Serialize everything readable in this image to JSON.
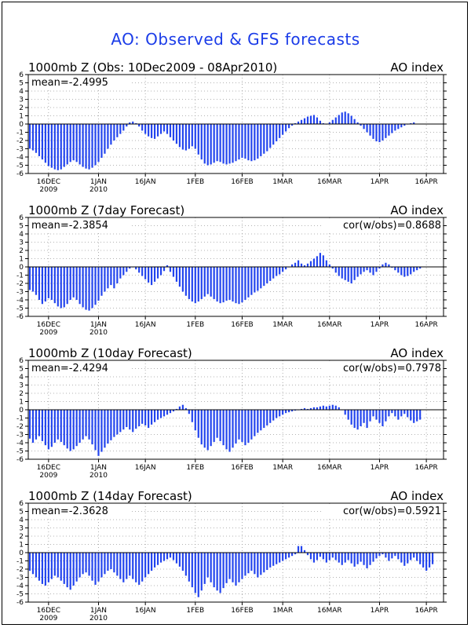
{
  "title": "AO: Observed & GFS forecasts",
  "chart_data": [
    {
      "type": "bar",
      "panel_title": "1000mb Z (Obs: 10Dec2009 - 08Apr2010)",
      "right_title": "AO index",
      "mean_label": "mean=-2.4995",
      "cor_label": "",
      "ylim": [
        -6,
        6
      ],
      "yticks": [
        6,
        5,
        4,
        3,
        2,
        1,
        0,
        -1,
        -2,
        -3,
        -4,
        -5,
        -6
      ],
      "xticks": [
        {
          "day": 6,
          "label": "16DEC",
          "sub": "2009"
        },
        {
          "day": 22,
          "label": "1JAN",
          "sub": "2010"
        },
        {
          "day": 37,
          "label": "16JAN",
          "sub": ""
        },
        {
          "day": 53,
          "label": "1FEB",
          "sub": ""
        },
        {
          "day": 68,
          "label": "16FEB",
          "sub": ""
        },
        {
          "day": 81,
          "label": "1MAR",
          "sub": ""
        },
        {
          "day": 96,
          "label": "16MAR",
          "sub": ""
        },
        {
          "day": 112,
          "label": "1APR",
          "sub": ""
        },
        {
          "day": 127,
          "label": "16APR",
          "sub": ""
        }
      ],
      "grid": true,
      "color": "#2244ee",
      "values": [
        -3.0,
        -3.2,
        -3.5,
        -3.9,
        -4.3,
        -4.7,
        -5.1,
        -5.3,
        -5.5,
        -5.6,
        -5.5,
        -5.2,
        -4.9,
        -4.6,
        -4.4,
        -4.6,
        -4.9,
        -5.2,
        -5.4,
        -5.5,
        -5.3,
        -5.0,
        -4.6,
        -4.1,
        -3.6,
        -3.0,
        -2.5,
        -2.0,
        -1.6,
        -1.2,
        -0.8,
        -0.3,
        0.2,
        0.3,
        0.1,
        -0.3,
        -0.8,
        -1.2,
        -1.5,
        -1.7,
        -1.8,
        -1.5,
        -1.2,
        -0.9,
        -1.2,
        -1.6,
        -2.0,
        -2.4,
        -2.8,
        -3.1,
        -3.2,
        -3.0,
        -2.7,
        -3.0,
        -3.7,
        -4.3,
        -4.8,
        -5.0,
        -4.9,
        -4.7,
        -4.5,
        -4.6,
        -4.8,
        -4.9,
        -4.8,
        -4.7,
        -4.5,
        -4.3,
        -4.1,
        -4.2,
        -4.4,
        -4.5,
        -4.4,
        -4.2,
        -3.9,
        -3.6,
        -3.3,
        -2.9,
        -2.5,
        -2.1,
        -1.7,
        -1.3,
        -0.9,
        -0.5,
        -0.2,
        0.1,
        0.3,
        0.5,
        0.7,
        0.9,
        1.0,
        1.1,
        0.8,
        0.4,
        0.1,
        0.0,
        0.2,
        0.5,
        0.8,
        1.1,
        1.4,
        1.5,
        1.3,
        1.0,
        0.6,
        0.2,
        -0.2,
        -0.6,
        -1.0,
        -1.4,
        -1.8,
        -2.1,
        -2.2,
        -2.0,
        -1.7,
        -1.4,
        -1.1,
        -0.8,
        -0.6,
        -0.4,
        -0.2,
        0.0,
        0.1,
        0.2
      ]
    },
    {
      "type": "bar",
      "panel_title": "1000mb Z (7day Forecast)",
      "right_title": "AO index",
      "mean_label": "mean=-2.3854",
      "cor_label": "cor(w/obs)=0.8688",
      "ylim": [
        -6,
        6
      ],
      "yticks": [
        6,
        5,
        4,
        3,
        2,
        1,
        0,
        -1,
        -2,
        -3,
        -4,
        -5,
        -6
      ],
      "xticks": [
        {
          "day": 6,
          "label": "16DEC",
          "sub": "2009"
        },
        {
          "day": 22,
          "label": "1JAN",
          "sub": "2010"
        },
        {
          "day": 37,
          "label": "16JAN",
          "sub": ""
        },
        {
          "day": 53,
          "label": "1FEB",
          "sub": ""
        },
        {
          "day": 68,
          "label": "16FEB",
          "sub": ""
        },
        {
          "day": 81,
          "label": "1MAR",
          "sub": ""
        },
        {
          "day": 96,
          "label": "16MAR",
          "sub": ""
        },
        {
          "day": 112,
          "label": "1APR",
          "sub": ""
        },
        {
          "day": 127,
          "label": "16APR",
          "sub": ""
        }
      ],
      "grid": true,
      "color": "#2244ee",
      "values": [
        -2.8,
        -3.0,
        -3.4,
        -4.0,
        -4.5,
        -4.2,
        -3.8,
        -4.0,
        -4.4,
        -4.8,
        -5.0,
        -4.9,
        -4.5,
        -4.0,
        -3.7,
        -4.0,
        -4.5,
        -4.9,
        -5.2,
        -5.3,
        -5.0,
        -4.6,
        -4.1,
        -3.5,
        -3.0,
        -2.6,
        -2.2,
        -2.6,
        -2.0,
        -1.4,
        -1.0,
        -0.6,
        -0.2,
        0.0,
        -0.3,
        -0.7,
        -1.1,
        -1.5,
        -1.9,
        -2.2,
        -1.8,
        -1.4,
        -1.0,
        -0.5,
        0.2,
        -0.6,
        -1.2,
        -1.8,
        -2.4,
        -3.0,
        -3.5,
        -3.9,
        -4.2,
        -4.4,
        -4.2,
        -3.9,
        -3.6,
        -3.3,
        -3.6,
        -3.9,
        -4.2,
        -4.4,
        -4.3,
        -4.1,
        -4.0,
        -4.2,
        -4.4,
        -4.5,
        -4.3,
        -4.0,
        -3.7,
        -3.4,
        -3.1,
        -2.9,
        -2.6,
        -2.3,
        -2.0,
        -1.7,
        -1.4,
        -1.1,
        -0.9,
        -0.6,
        -0.3,
        0.0,
        0.3,
        0.5,
        0.8,
        0.4,
        0.2,
        0.4,
        0.7,
        1.0,
        1.3,
        1.7,
        1.4,
        0.8,
        0.3,
        -0.2,
        -0.7,
        -1.1,
        -1.4,
        -1.6,
        -1.8,
        -2.0,
        -1.6,
        -1.2,
        -0.9,
        -0.6,
        -0.4,
        -0.7,
        -1.0,
        -0.6,
        -0.2,
        0.3,
        0.5,
        0.3,
        -0.1,
        -0.4,
        -0.7,
        -1.0,
        -1.2,
        -1.1,
        -0.9,
        -0.6,
        -0.4,
        -0.2
      ]
    },
    {
      "type": "bar",
      "panel_title": "1000mb Z (10day Forecast)",
      "right_title": "AO index",
      "mean_label": "mean=-2.4294",
      "cor_label": "cor(w/obs)=0.7978",
      "ylim": [
        -6,
        6
      ],
      "yticks": [
        6,
        5,
        4,
        3,
        2,
        1,
        0,
        -1,
        -2,
        -3,
        -4,
        -5,
        -6
      ],
      "xticks": [
        {
          "day": 6,
          "label": "16DEC",
          "sub": "2009"
        },
        {
          "day": 22,
          "label": "1JAN",
          "sub": "2010"
        },
        {
          "day": 37,
          "label": "16JAN",
          "sub": ""
        },
        {
          "day": 53,
          "label": "1FEB",
          "sub": ""
        },
        {
          "day": 68,
          "label": "16FEB",
          "sub": ""
        },
        {
          "day": 81,
          "label": "1MAR",
          "sub": ""
        },
        {
          "day": 96,
          "label": "16MAR",
          "sub": ""
        },
        {
          "day": 112,
          "label": "1APR",
          "sub": ""
        },
        {
          "day": 127,
          "label": "16APR",
          "sub": ""
        }
      ],
      "grid": true,
      "color": "#2244ee",
      "values": [
        -3.5,
        -4.0,
        -3.6,
        -3.2,
        -3.8,
        -4.3,
        -4.8,
        -4.5,
        -4.0,
        -3.6,
        -3.9,
        -4.3,
        -4.7,
        -5.0,
        -4.8,
        -4.4,
        -4.0,
        -3.6,
        -3.2,
        -3.6,
        -4.2,
        -4.9,
        -5.6,
        -5.1,
        -4.6,
        -4.1,
        -3.7,
        -3.3,
        -3.0,
        -2.7,
        -2.4,
        -2.1,
        -2.4,
        -2.7,
        -2.3,
        -2.0,
        -1.7,
        -1.9,
        -2.2,
        -1.8,
        -1.5,
        -1.2,
        -1.0,
        -0.8,
        -0.6,
        -0.4,
        -0.2,
        0.1,
        0.4,
        0.6,
        0.2,
        -0.5,
        -1.5,
        -2.5,
        -3.4,
        -4.2,
        -4.6,
        -4.9,
        -4.4,
        -3.9,
        -3.4,
        -3.8,
        -4.3,
        -4.8,
        -5.1,
        -4.6,
        -4.1,
        -3.6,
        -3.9,
        -4.3,
        -4.0,
        -3.6,
        -3.2,
        -2.8,
        -2.5,
        -2.2,
        -1.9,
        -1.6,
        -1.3,
        -1.0,
        -0.8,
        -0.6,
        -0.4,
        -0.3,
        -0.2,
        -0.1,
        0.0,
        0.1,
        0.2,
        0.1,
        0.2,
        0.3,
        0.3,
        0.4,
        0.5,
        0.4,
        0.5,
        0.6,
        0.5,
        0.3,
        0.0,
        -0.6,
        -1.2,
        -1.8,
        -2.2,
        -2.4,
        -2.0,
        -1.6,
        -2.2,
        -1.4,
        -0.8,
        -1.2,
        -1.6,
        -2.0,
        -1.4,
        -0.8,
        -0.4,
        -0.8,
        -1.2,
        -0.8,
        -0.5,
        -0.9,
        -1.3,
        -1.6,
        -1.4,
        -1.2
      ]
    },
    {
      "type": "bar",
      "panel_title": "1000mb Z (14day Forecast)",
      "right_title": "AO index",
      "mean_label": "mean=-2.3628",
      "cor_label": "cor(w/obs)=0.5921",
      "ylim": [
        -6,
        6
      ],
      "yticks": [
        6,
        5,
        4,
        3,
        2,
        1,
        0,
        -1,
        -2,
        -3,
        -4,
        -5,
        -6
      ],
      "xticks": [
        {
          "day": 6,
          "label": "16DEC",
          "sub": "2009"
        },
        {
          "day": 22,
          "label": "1JAN",
          "sub": "2010"
        },
        {
          "day": 37,
          "label": "16JAN",
          "sub": ""
        },
        {
          "day": 53,
          "label": "1FEB",
          "sub": ""
        },
        {
          "day": 68,
          "label": "16FEB",
          "sub": ""
        },
        {
          "day": 81,
          "label": "1MAR",
          "sub": ""
        },
        {
          "day": 96,
          "label": "16MAR",
          "sub": ""
        },
        {
          "day": 112,
          "label": "1APR",
          "sub": ""
        },
        {
          "day": 127,
          "label": "16APR",
          "sub": ""
        }
      ],
      "grid": true,
      "color": "#2244ee",
      "values": [
        -2.2,
        -2.6,
        -3.0,
        -3.4,
        -3.8,
        -4.0,
        -3.6,
        -3.2,
        -2.8,
        -3.0,
        -3.4,
        -3.8,
        -4.2,
        -4.5,
        -4.0,
        -3.5,
        -3.0,
        -2.6,
        -2.4,
        -2.8,
        -3.4,
        -3.9,
        -3.5,
        -3.0,
        -2.6,
        -2.2,
        -2.0,
        -2.4,
        -2.8,
        -3.2,
        -3.6,
        -3.2,
        -2.8,
        -3.2,
        -3.6,
        -3.9,
        -3.5,
        -3.0,
        -2.6,
        -2.2,
        -1.8,
        -1.5,
        -1.2,
        -1.0,
        -0.8,
        -0.6,
        -0.9,
        -1.3,
        -1.7,
        -2.2,
        -2.8,
        -3.5,
        -4.2,
        -4.9,
        -5.4,
        -4.6,
        -3.8,
        -3.0,
        -3.6,
        -4.2,
        -4.6,
        -4.9,
        -4.3,
        -3.7,
        -3.2,
        -3.6,
        -4.0,
        -3.6,
        -3.2,
        -2.8,
        -2.5,
        -2.2,
        -2.6,
        -3.0,
        -2.7,
        -2.4,
        -2.1,
        -1.8,
        -1.6,
        -1.4,
        -1.2,
        -1.0,
        -0.8,
        -0.6,
        -0.4,
        -0.2,
        0.8,
        0.8,
        0.3,
        -0.3,
        -0.8,
        -1.2,
        -0.9,
        -0.5,
        -0.8,
        -1.2,
        -0.9,
        -0.6,
        -0.9,
        -1.2,
        -1.5,
        -1.2,
        -0.9,
        -1.3,
        -1.7,
        -1.4,
        -1.1,
        -1.5,
        -1.9,
        -1.5,
        -1.1,
        -0.7,
        -0.4,
        -0.2,
        -0.6,
        -1.0,
        -0.7,
        -0.4,
        -0.8,
        -1.2,
        -1.6,
        -1.3,
        -0.9,
        -0.6,
        -1.0,
        -1.4,
        -1.8,
        -2.2,
        -1.8,
        -1.4
      ]
    }
  ]
}
